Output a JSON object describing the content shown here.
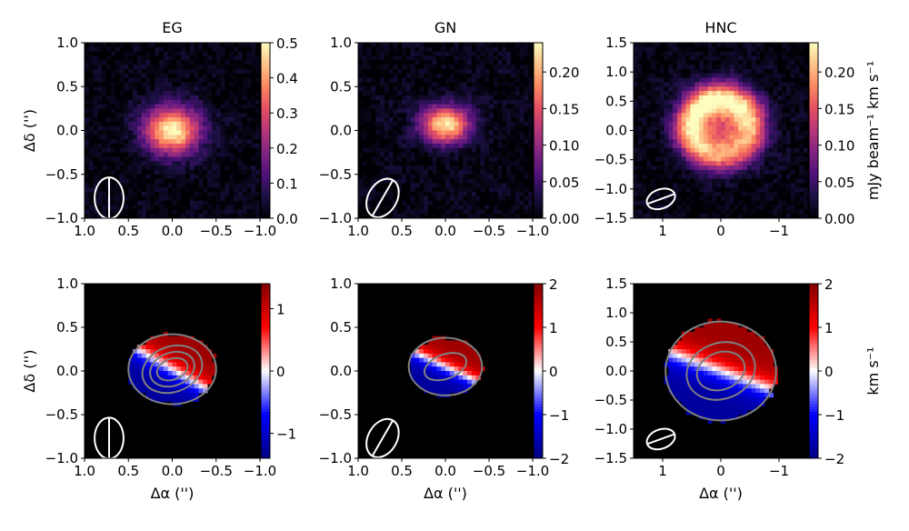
{
  "chart_data": [
    {
      "type": "heatmap",
      "title": "EG",
      "xlabel": "",
      "ylabel": "Δδ ('')",
      "xlim": [
        1.0,
        -1.0
      ],
      "ylim": [
        -1.0,
        1.0
      ],
      "xticks": [
        "1.0",
        "0.5",
        "0.0",
        "−0.5",
        "−1.0"
      ],
      "yticks": [
        "1.0",
        "0.5",
        "0.0",
        "−0.5",
        "−1.0"
      ],
      "xtick_values": [
        1.0,
        0.5,
        0.0,
        -0.5,
        -1.0
      ],
      "ytick_values": [
        1.0,
        0.5,
        0.0,
        -0.5,
        -1.0
      ],
      "colormap": "magma",
      "cbar_range": [
        0.0,
        0.5
      ],
      "cbar_ticks": [
        "0.5",
        "0.4",
        "0.3",
        "0.2",
        "0.1",
        "0.0"
      ],
      "cbar_tick_values": [
        0.5,
        0.4,
        0.3,
        0.2,
        0.1,
        0.0
      ],
      "cbar_label": "",
      "source": {
        "shape": "gaussian",
        "center": [
          0.0,
          0.0
        ],
        "sigma": [
          0.22,
          0.19
        ],
        "peak": 0.5
      },
      "beam": {
        "center": [
          0.72,
          -0.77
        ],
        "major": 0.47,
        "minor": 0.33,
        "pa_deg": 0
      }
    },
    {
      "type": "heatmap",
      "title": "GN",
      "xlabel": "",
      "ylabel": "",
      "xlim": [
        1.0,
        -1.0
      ],
      "ylim": [
        -1.0,
        1.0
      ],
      "xticks": [
        "1.0",
        "0.5",
        "0.0",
        "−0.5",
        "−1.0"
      ],
      "yticks": [
        "1.0",
        "0.5",
        "0.0",
        "−0.5",
        "−1.0"
      ],
      "xtick_values": [
        1.0,
        0.5,
        0.0,
        -0.5,
        -1.0
      ],
      "ytick_values": [
        1.0,
        0.5,
        0.0,
        -0.5,
        -1.0
      ],
      "colormap": "magma",
      "cbar_range": [
        0.0,
        0.24
      ],
      "cbar_ticks": [
        "0.20",
        "0.15",
        "0.10",
        "0.05",
        "0.00"
      ],
      "cbar_tick_values": [
        0.2,
        0.15,
        0.1,
        0.05,
        0.0
      ],
      "cbar_label": "",
      "source": {
        "shape": "gaussian",
        "center": [
          0.0,
          0.07
        ],
        "sigma": [
          0.2,
          0.15
        ],
        "peak": 0.23
      },
      "beam": {
        "center": [
          0.72,
          -0.77
        ],
        "major": 0.47,
        "minor": 0.33,
        "pa_deg": 30
      }
    },
    {
      "type": "heatmap",
      "title": "HNC",
      "xlabel": "",
      "ylabel": "",
      "xlim": [
        1.5,
        -1.5
      ],
      "ylim": [
        -1.5,
        1.5
      ],
      "xticks": [
        "1",
        "0",
        "−1"
      ],
      "yticks": [
        "1.5",
        "1.0",
        "0.5",
        "0.0",
        "−0.5",
        "−1.0",
        "−1.5"
      ],
      "xtick_values": [
        1,
        0,
        -1
      ],
      "ytick_values": [
        1.5,
        1.0,
        0.5,
        0.0,
        -0.5,
        -1.0,
        -1.5
      ],
      "colormap": "magma",
      "cbar_range": [
        0.0,
        0.24
      ],
      "cbar_ticks": [
        "0.20",
        "0.15",
        "0.10",
        "0.05",
        "0.00"
      ],
      "cbar_tick_values": [
        0.2,
        0.15,
        0.1,
        0.05,
        0.0
      ],
      "cbar_label": "mJy beam⁻¹ km s⁻¹",
      "source": {
        "shape": "ring",
        "center": [
          0.0,
          0.05
        ],
        "radius": 0.52,
        "ring_width": 0.3,
        "peak": 0.22,
        "core_fill": 0.12
      },
      "beam": {
        "center": [
          1.03,
          -1.17
        ],
        "major": 0.5,
        "minor": 0.33,
        "pa_deg": 70
      }
    },
    {
      "type": "heatmap",
      "title": "",
      "xlabel": "Δα ('')",
      "ylabel": "Δδ ('')",
      "xlim": [
        1.0,
        -1.0
      ],
      "ylim": [
        -1.0,
        1.0
      ],
      "xticks": [
        "1.0",
        "0.5",
        "0.0",
        "−0.5",
        "−1.0"
      ],
      "yticks": [
        "1.0",
        "0.5",
        "0.0",
        "−0.5",
        "−1.0"
      ],
      "xtick_values": [
        1.0,
        0.5,
        0.0,
        -0.5,
        -1.0
      ],
      "ytick_values": [
        1.0,
        0.5,
        0.0,
        -0.5,
        -1.0
      ],
      "colormap": "seismic",
      "cbar_range": [
        -1.4,
        1.4
      ],
      "cbar_ticks": [
        "1",
        "0",
        "−1"
      ],
      "cbar_tick_values": [
        1,
        0,
        -1
      ],
      "cbar_label": "",
      "velocity_field": {
        "center": [
          0.0,
          0.02
        ],
        "extent": [
          0.5,
          0.4
        ],
        "gradient_deg": 30,
        "max": 1.4
      },
      "contour_radii": [
        [
          0.18,
          0.12
        ],
        [
          0.26,
          0.19
        ],
        [
          0.35,
          0.26
        ]
      ],
      "beam": {
        "center": [
          0.72,
          -0.77
        ],
        "major": 0.47,
        "minor": 0.33,
        "pa_deg": 0
      }
    },
    {
      "type": "heatmap",
      "title": "",
      "xlabel": "Δα ('')",
      "ylabel": "",
      "xlim": [
        1.0,
        -1.0
      ],
      "ylim": [
        -1.0,
        1.0
      ],
      "xticks": [
        "1.0",
        "0.5",
        "0.0",
        "−0.5",
        "−1.0"
      ],
      "yticks": [
        "1.0",
        "0.5",
        "0.0",
        "−0.5",
        "−1.0"
      ],
      "xtick_values": [
        1.0,
        0.5,
        0.0,
        -0.5,
        -1.0
      ],
      "ytick_values": [
        1.0,
        0.5,
        0.0,
        -0.5,
        -1.0
      ],
      "colormap": "seismic",
      "cbar_range": [
        -2.0,
        2.0
      ],
      "cbar_ticks": [
        "2",
        "1",
        "0",
        "−1",
        "−2"
      ],
      "cbar_tick_values": [
        2,
        1,
        0,
        -1,
        -2
      ],
      "cbar_label": "",
      "velocity_field": {
        "center": [
          0.0,
          0.05
        ],
        "extent": [
          0.42,
          0.33
        ],
        "gradient_deg": 25,
        "max": 2.0
      },
      "contour_radii": [
        [
          0.25,
          0.14
        ]
      ],
      "beam": {
        "center": [
          0.72,
          -0.77
        ],
        "major": 0.47,
        "minor": 0.33,
        "pa_deg": 30
      }
    },
    {
      "type": "heatmap",
      "title": "",
      "xlabel": "Δα ('')",
      "ylabel": "",
      "xlim": [
        1.5,
        -1.5
      ],
      "ylim": [
        -1.5,
        1.5
      ],
      "xticks": [
        "1",
        "0",
        "−1"
      ],
      "yticks": [
        "1.5",
        "1.0",
        "0.5",
        "0.0",
        "−0.5",
        "−1.0",
        "−1.5"
      ],
      "xtick_values": [
        1,
        0,
        -1
      ],
      "ytick_values": [
        1.5,
        1.0,
        0.5,
        0.0,
        -0.5,
        -1.0,
        -1.5
      ],
      "colormap": "seismic",
      "cbar_range": [
        -2.0,
        2.0
      ],
      "cbar_ticks": [
        "2",
        "1",
        "0",
        "−1",
        "−2"
      ],
      "cbar_tick_values": [
        2,
        1,
        0,
        -1,
        -2
      ],
      "cbar_label": "km s⁻¹",
      "velocity_field": {
        "center": [
          0.0,
          0.0
        ],
        "extent": [
          0.95,
          0.85
        ],
        "gradient_deg": 20,
        "max": 2.0
      },
      "contour_radii": [
        [
          0.42,
          0.32
        ],
        [
          0.6,
          0.48
        ]
      ],
      "beam": {
        "center": [
          1.03,
          -1.17
        ],
        "major": 0.5,
        "minor": 0.33,
        "pa_deg": 70
      }
    }
  ]
}
